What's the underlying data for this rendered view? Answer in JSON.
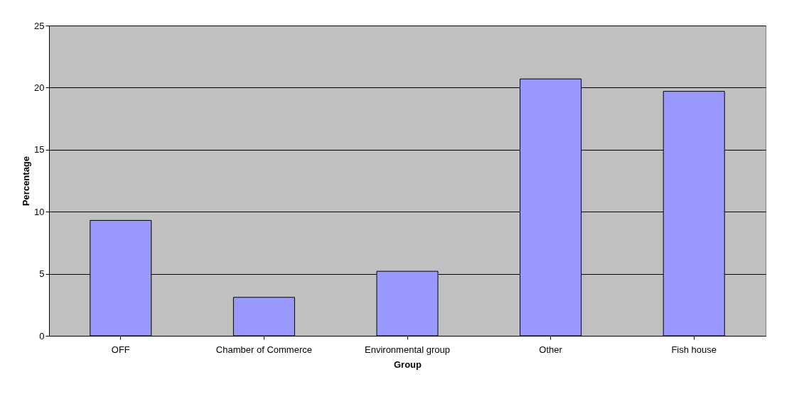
{
  "chart_data": {
    "type": "bar",
    "xlabel": "Group",
    "ylabel": "Percentage",
    "categories": [
      "OFF",
      "Chamber of Commerce",
      "Environmental group",
      "Other",
      "Fish house"
    ],
    "values": [
      9.3,
      3.1,
      5.2,
      20.7,
      19.7
    ],
    "color": "#9999ff",
    "ylim": [
      0,
      25
    ],
    "yticks": [
      0,
      5,
      10,
      15,
      20,
      25
    ],
    "grid": "y"
  }
}
